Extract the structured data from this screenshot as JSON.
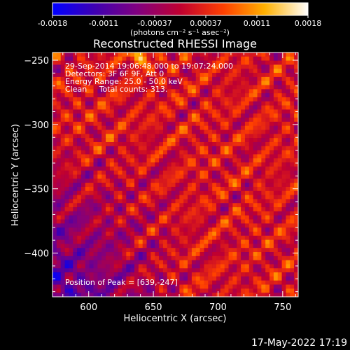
{
  "chart_data": {
    "type": "heatmap",
    "title": "Reconstructed RHESSI Image",
    "xlabel": "Heliocentric X (arcsec)",
    "ylabel": "Heliocentric Y (arcsec)",
    "xlim": [
      572,
      762
    ],
    "ylim": [
      -434,
      -244
    ],
    "x_ticks": [
      600,
      650,
      700,
      750
    ],
    "y_ticks": [
      -250,
      -300,
      -350,
      -400
    ],
    "colorbar": {
      "min": -0.0018,
      "max": 0.0018,
      "ticks": [
        "-0.0018",
        "-0.0011",
        "-0.00037",
        "0.00037",
        "0.0011",
        "0.0018"
      ],
      "units": "(photons cm⁻² s⁻¹ asec⁻²)",
      "colors": [
        "#0000ff",
        "#4000b0",
        "#800080",
        "#c00030",
        "#ff4000",
        "#ffb000",
        "#ffffff"
      ]
    },
    "annotations": [
      "29-Sep-2014 19:06:48.000 to 19:07:24.000",
      "Detectors: 3F 6F 9F, Att 0",
      "Energy Range: 25.0 - 50.0 keV",
      "Clean     Total counts: 313."
    ],
    "peak_label": "Position of Peak = [639,-247]",
    "peak": {
      "x": 639,
      "y": -247
    },
    "grid": false
  },
  "timestamp": "17-May-2022 17:19"
}
